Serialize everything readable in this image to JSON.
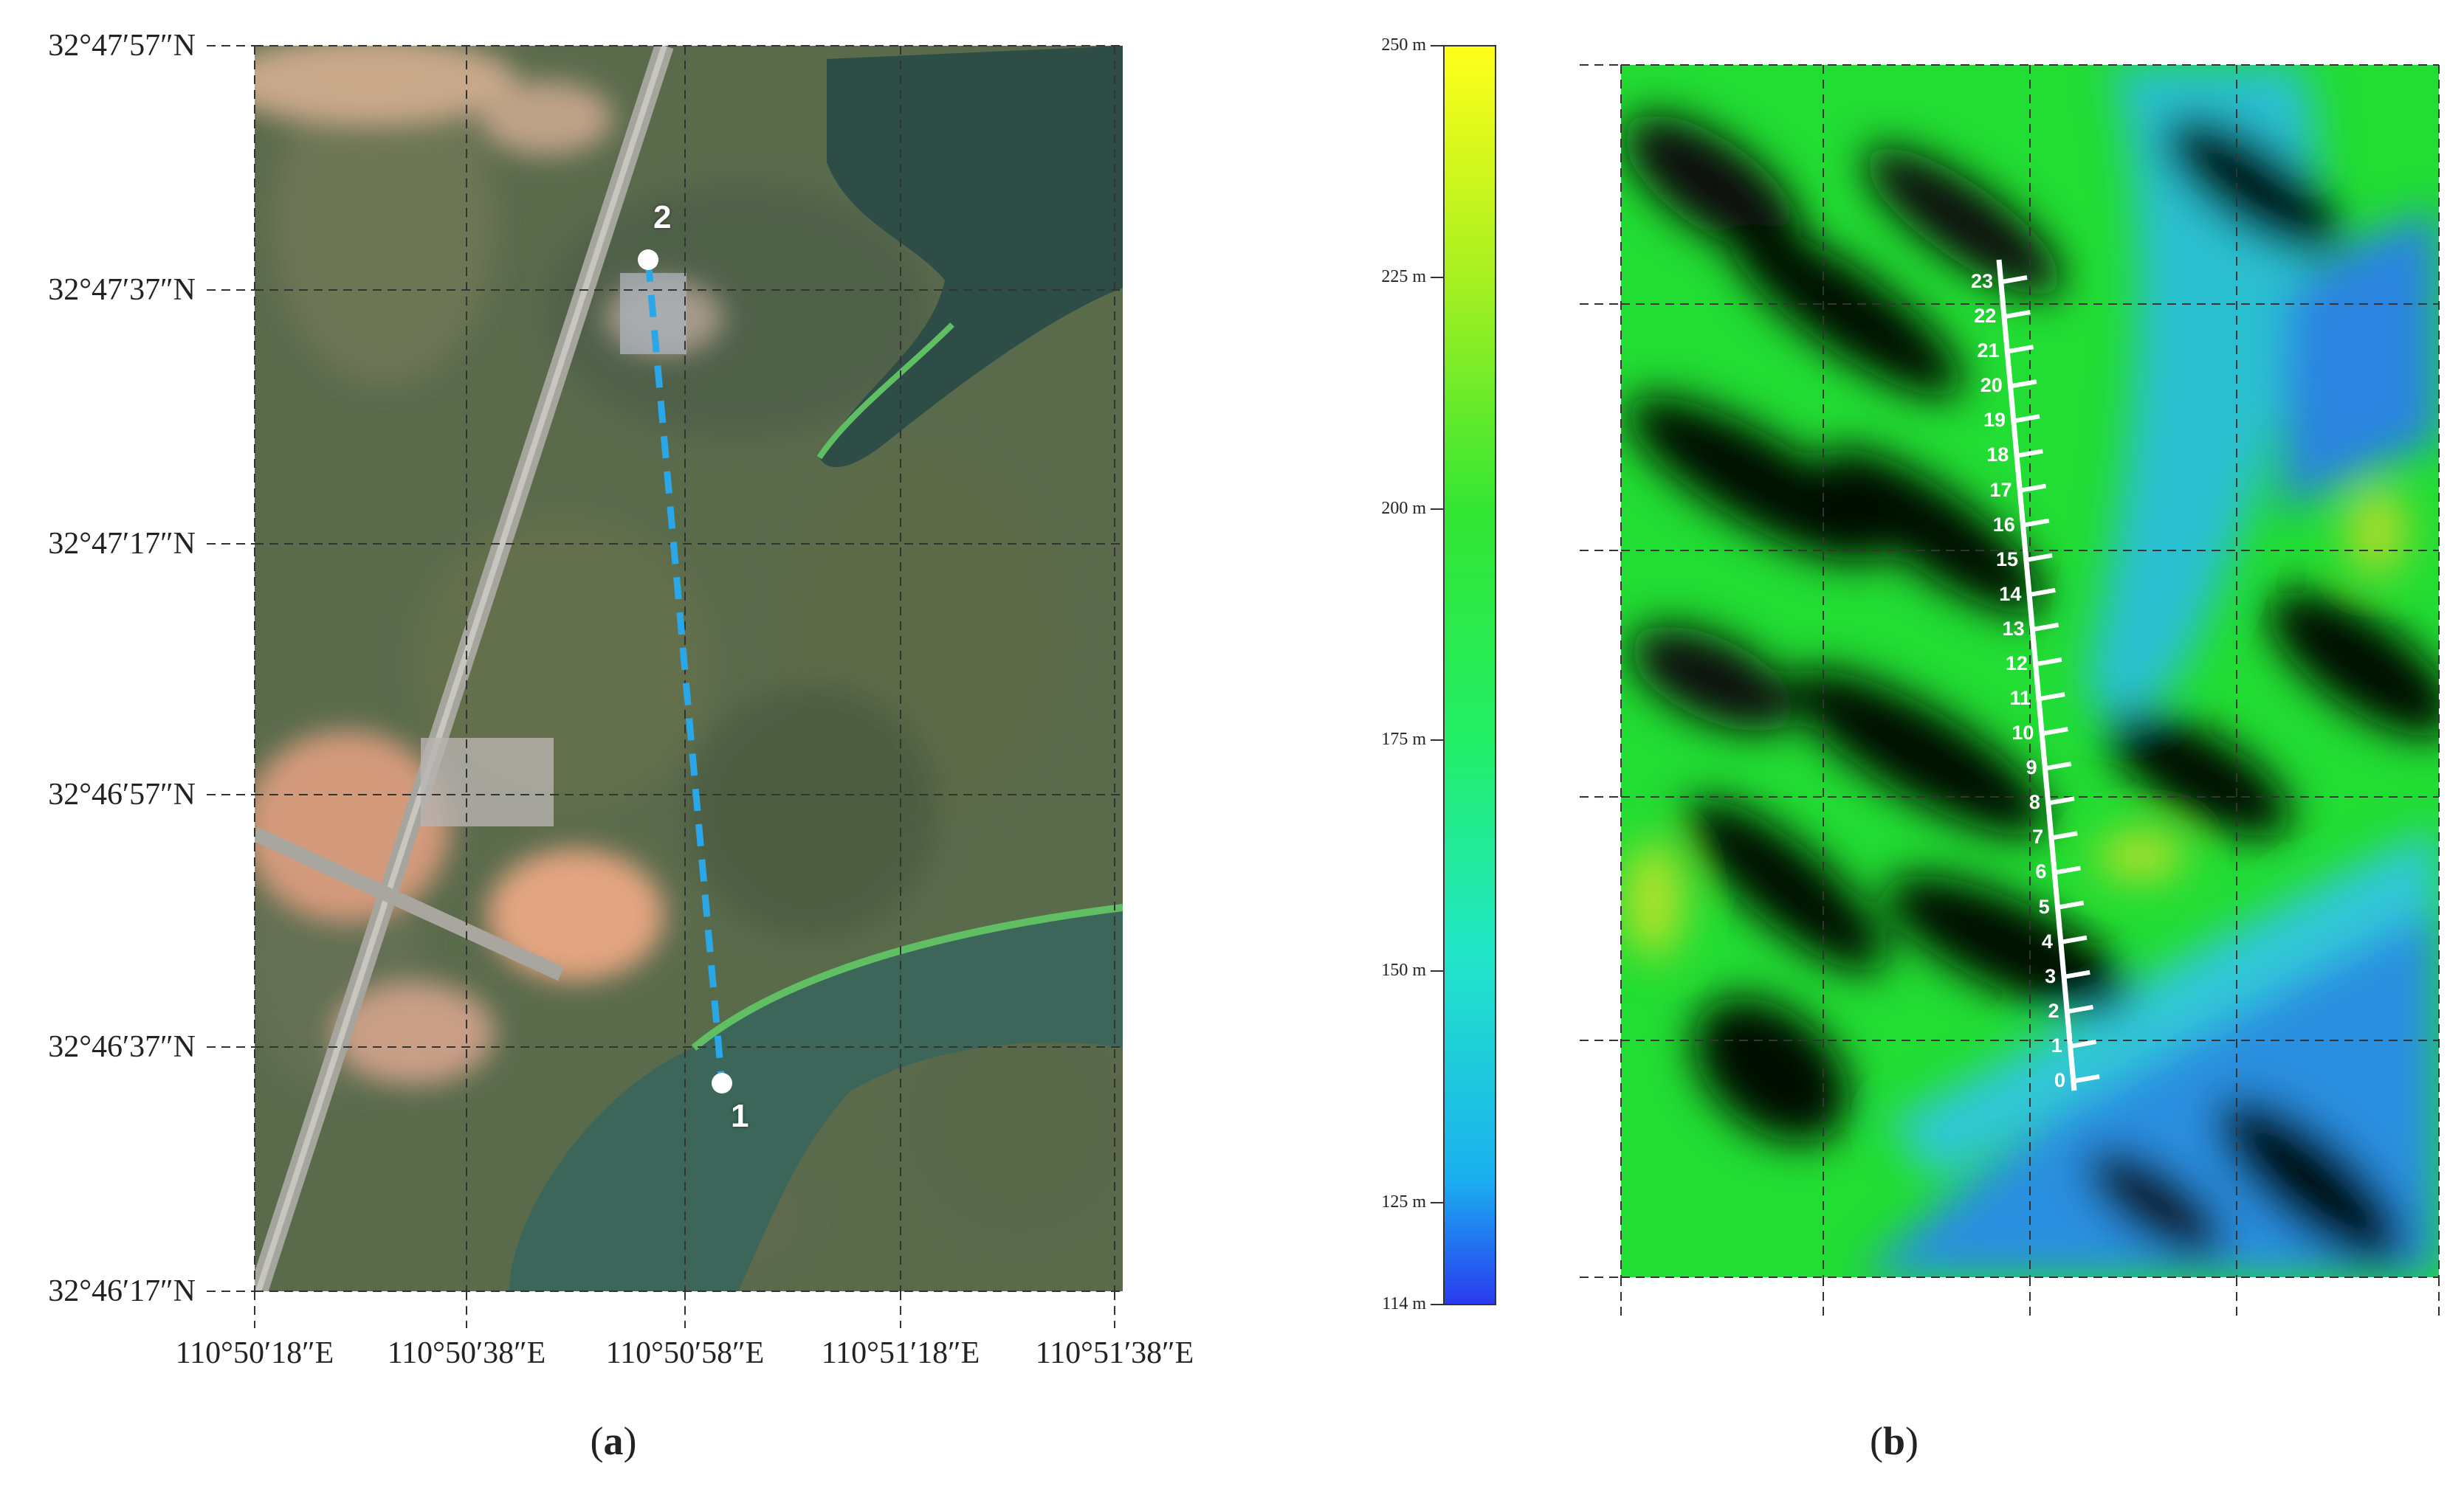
{
  "panel_a": {
    "caption_letter": "a",
    "lat_labels": [
      "32°47′57″N",
      "32°47′37″N",
      "32°47′17″N",
      "32°46′57″N",
      "32°46′37″N",
      "32°46′17″N"
    ],
    "lon_labels": [
      "110°50′18″E",
      "110°50′38″E",
      "110°50′58″E",
      "110°51′18″E",
      "110°51′38″E"
    ],
    "point_1_label": "1",
    "point_2_label": "2",
    "line_color": "#2aa7e8"
  },
  "colorbar": {
    "tick_labels": [
      "250 m",
      "225 m",
      "200 m",
      "175 m",
      "150 m",
      "125 m",
      "114 m"
    ],
    "colors": [
      "#ffff1a",
      "#aaf020",
      "#33e633",
      "#22ee66",
      "#22e6c8",
      "#1ab0f0",
      "#2a3af0"
    ]
  },
  "panel_b": {
    "caption_letter": "b",
    "scale_labels": [
      "0",
      "1",
      "2",
      "3",
      "4",
      "5",
      "6",
      "7",
      "8",
      "9",
      "10",
      "11",
      "12",
      "13",
      "14",
      "15",
      "16",
      "17",
      "18",
      "19",
      "20",
      "21",
      "22",
      "23"
    ]
  }
}
